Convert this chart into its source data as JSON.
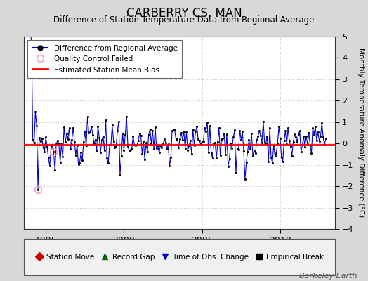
{
  "title": "CARBERRY CS, MAN",
  "subtitle": "Difference of Station Temperature Data from Regional Average",
  "ylabel": "Monthly Temperature Anomaly Difference (°C)",
  "ylim": [
    -4,
    5
  ],
  "yticks": [
    -4,
    -3,
    -2,
    -1,
    0,
    1,
    2,
    3,
    4,
    5
  ],
  "xticks": [
    1995,
    2000,
    2005,
    2010
  ],
  "xlim": [
    1993.6,
    2013.5
  ],
  "bias_line": -0.05,
  "line_color": "#0000cc",
  "bias_color": "#ff0000",
  "qc_color": "#ff99cc",
  "marker_color": "#000000",
  "bg_color": "#d8d8d8",
  "plot_bg_color": "#ffffff",
  "watermark": "Berkeley Earth",
  "legend1_labels": [
    "Difference from Regional Average",
    "Quality Control Failed",
    "Estimated Station Mean Bias"
  ],
  "legend2_labels": [
    "Station Move",
    "Record Gap",
    "Time of Obs. Change",
    "Empirical Break"
  ],
  "legend2_colors": [
    "#cc0000",
    "#006600",
    "#0000cc",
    "#000000"
  ],
  "legend2_markers": [
    "D",
    "^",
    "v",
    "s"
  ]
}
